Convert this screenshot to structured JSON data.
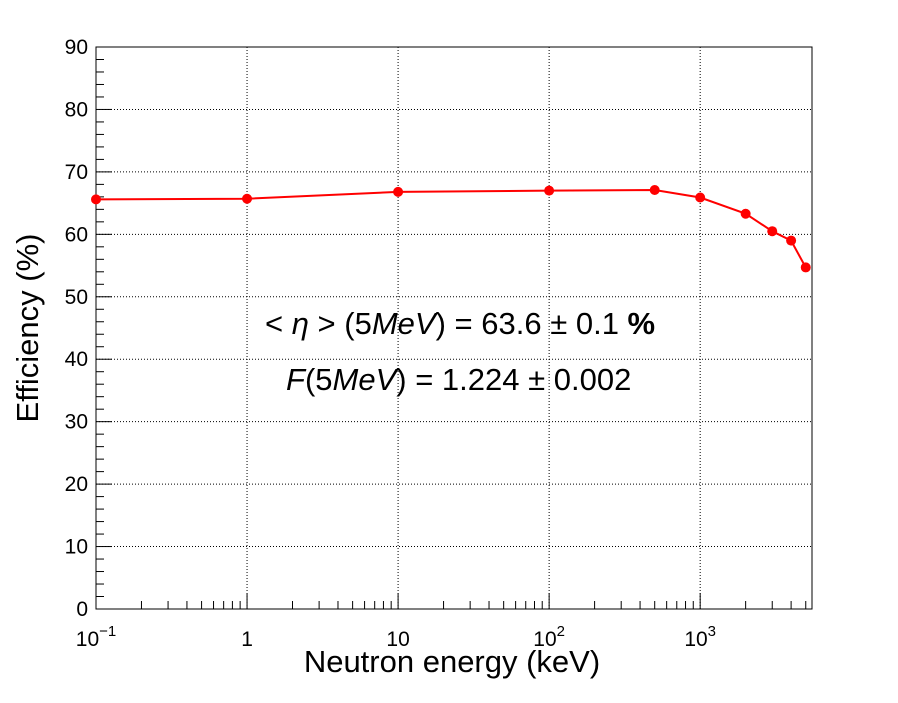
{
  "chart_data": {
    "type": "line",
    "xlabel": "Neutron energy (keV)",
    "ylabel": "Efficiency (%)",
    "xscale": "log",
    "xlim": [
      0.1,
      5500
    ],
    "ylim": [
      0,
      90
    ],
    "grid": true,
    "y_ticks": [
      "0",
      "10",
      "20",
      "30",
      "40",
      "50",
      "60",
      "70",
      "80",
      "90"
    ],
    "x_ticks": [
      {
        "value": 0.1,
        "base": "10",
        "exp": "−1"
      },
      {
        "value": 1,
        "base": "1",
        "exp": ""
      },
      {
        "value": 10,
        "base": "10",
        "exp": ""
      },
      {
        "value": 100,
        "base": "10",
        "exp": "2"
      },
      {
        "value": 1000,
        "base": "10",
        "exp": "3"
      }
    ],
    "color": "#ff0000",
    "series": [
      {
        "x": [
          0.1,
          1,
          10,
          100,
          500,
          1000,
          2000,
          3000,
          4000,
          5000
        ],
        "y": [
          65.6,
          65.7,
          66.8,
          67.0,
          67.1,
          65.9,
          63.3,
          60.5,
          59.0,
          54.7
        ]
      }
    ],
    "annotations": {
      "line1": {
        "lt": "< ",
        "eta": "η",
        "gt": " > ",
        "open": "(5",
        "unit": "MeV",
        "rest": ") = 63.6 ± 0.1 ",
        "pct": "%"
      },
      "line2": {
        "f": "F",
        "open": "(5",
        "unit": "MeV",
        "rest": ") = 1.224 ± 0.002"
      }
    }
  }
}
